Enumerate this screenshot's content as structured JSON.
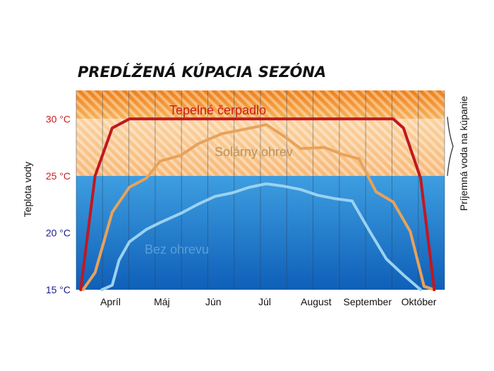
{
  "chart_data": {
    "type": "line",
    "title": "PREDĹŽENÁ KÚPACIA SEZÓNA",
    "ylabel": "Teplota vody",
    "right_label": "Príjemná voda na kúpanie",
    "ylim": [
      15,
      32.5
    ],
    "comfort_band": [
      25,
      30
    ],
    "yticks": [
      {
        "label": "30 °C",
        "value": 30,
        "color": "#c81e1e"
      },
      {
        "label": "25 °C",
        "value": 25,
        "color": "#c81e1e"
      },
      {
        "label": "20 °C",
        "value": 20,
        "color": "#1a1a8c"
      },
      {
        "label": "15 °C",
        "value": 15,
        "color": "#1a1a8c"
      }
    ],
    "months": [
      "Apríl",
      "Máj",
      "Jún",
      "Júl",
      "August",
      "September",
      "Október"
    ],
    "month_positions": [
      0.75,
      2.25,
      3.75,
      5.25,
      6.75,
      8.25,
      9.75
    ],
    "grid_columns": 14,
    "xlim": [
      -0.25,
      10.5
    ],
    "series": [
      {
        "name": "Tepelné čerpadlo",
        "color": "#c0181f",
        "label_color": "#c81e1e",
        "x": [
          -0.12,
          0.3,
          0.8,
          1.3,
          2.0,
          3.0,
          4.0,
          5.0,
          6.0,
          7.0,
          8.0,
          9.0,
          9.3,
          9.8,
          10.2
        ],
        "y": [
          15,
          25,
          29.2,
          30,
          30,
          30,
          30,
          30,
          30,
          30,
          30,
          30,
          29.2,
          24.8,
          15
        ]
      },
      {
        "name": "Solárny ohrev",
        "color": "#e8a25a",
        "label_color": "#b79560",
        "x": [
          -0.05,
          0.3,
          0.8,
          1.3,
          1.8,
          2.2,
          2.8,
          3.3,
          4.0,
          4.5,
          5.0,
          5.3,
          5.8,
          6.3,
          7.0,
          7.5,
          8.0,
          8.5,
          9.0,
          9.5,
          9.9,
          10.2
        ],
        "y": [
          15,
          16.5,
          21.8,
          24,
          24.8,
          26.3,
          26.8,
          27.8,
          28.7,
          29,
          29.3,
          29.5,
          28.5,
          27.4,
          27.5,
          26.9,
          26.5,
          23.6,
          22.7,
          20.1,
          15.3,
          15
        ]
      },
      {
        "name": "Bez ohrevu",
        "color": "#9ad2f0",
        "label_color": "#5a9fd8",
        "x": [
          0.5,
          0.8,
          1.0,
          1.3,
          1.8,
          2.2,
          2.8,
          3.3,
          3.8,
          4.3,
          4.8,
          5.3,
          5.8,
          6.3,
          6.8,
          7.3,
          7.8,
          8.3,
          8.8,
          9.3,
          9.8
        ],
        "y": [
          15,
          15.4,
          17.6,
          19.2,
          20.3,
          20.9,
          21.7,
          22.5,
          23.2,
          23.5,
          24,
          24.3,
          24.1,
          23.8,
          23.3,
          23,
          22.8,
          20.2,
          17.7,
          16.3,
          15
        ]
      }
    ]
  }
}
